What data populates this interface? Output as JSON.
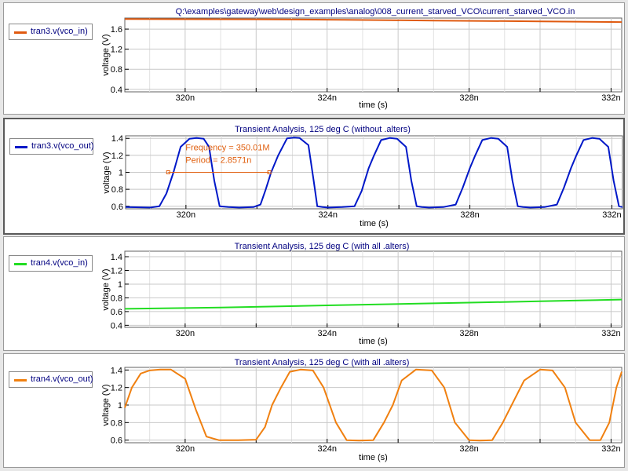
{
  "colors": {
    "plot_title": "#000080",
    "grid": "#c8c8c8",
    "measure": "#e06010",
    "axis_text": "#000000"
  },
  "measurement": {
    "frequency": "Frequency = 350.01M",
    "period": "Period = 2.8571n"
  },
  "chart_data": [
    {
      "type": "line",
      "title": "Q:\\examples\\gateway\\web\\design_examples\\analog\\008_current_starved_VCO\\current_starved_VCO.in",
      "xlabel": "time (s)",
      "ylabel": "voltage (V)",
      "xlim": [
        318.3,
        332.3
      ],
      "ylim": [
        0.35,
        1.82
      ],
      "xticks": [
        320,
        322,
        324,
        326,
        328,
        330,
        332
      ],
      "xtick_labels": [
        "320n",
        "",
        "324n",
        "",
        "328n",
        "",
        "332n"
      ],
      "yticks": [
        0.4,
        0.8,
        1.2,
        1.6
      ],
      "ytick_labels": [
        "0.4",
        "0.8",
        "1.2",
        "1.6"
      ],
      "grid": true,
      "series": [
        {
          "name": "tran3.v(vco_in)",
          "color": "#e05a10",
          "x": [
            318.3,
            322,
            324.5,
            327,
            330,
            332.3
          ],
          "y": [
            1.8,
            1.795,
            1.785,
            1.77,
            1.755,
            1.74
          ]
        }
      ]
    },
    {
      "type": "line",
      "title": "Transient Analysis, 125 deg C (without .alters)",
      "xlabel": "time (s)",
      "ylabel": "voltage (V)",
      "xlim": [
        318.3,
        332.3
      ],
      "ylim": [
        0.57,
        1.43
      ],
      "xticks": [
        320,
        322,
        324,
        326,
        328,
        330,
        332
      ],
      "xtick_labels": [
        "320n",
        "",
        "324n",
        "",
        "328n",
        "",
        "332n"
      ],
      "yticks": [
        0.6,
        0.8,
        1.0,
        1.2,
        1.4
      ],
      "ytick_labels": [
        "0.6",
        "0.8",
        "1",
        "1.2",
        "1.4"
      ],
      "grid": true,
      "series": [
        {
          "name": "tran3.v(vco_out)",
          "color": "#0018c8",
          "x": [
            318.3,
            319.0,
            319.25,
            319.45,
            319.65,
            319.85,
            320.1,
            320.3,
            320.5,
            320.65,
            320.8,
            320.95,
            321.2,
            321.5,
            321.9,
            322.1,
            322.25,
            322.4,
            322.6,
            322.85,
            323.05,
            323.2,
            323.45,
            323.6,
            323.7,
            323.85,
            324.0,
            324.4,
            324.75,
            324.95,
            325.15,
            325.3,
            325.5,
            325.75,
            325.95,
            326.2,
            326.35,
            326.5,
            326.65,
            326.85,
            327.25,
            327.6,
            327.8,
            328.0,
            328.15,
            328.35,
            328.6,
            328.8,
            329.05,
            329.2,
            329.35,
            329.5,
            329.7,
            330.1,
            330.45,
            330.65,
            330.85,
            331.0,
            331.2,
            331.45,
            331.65,
            331.9,
            332.05,
            332.2,
            332.3
          ],
          "y": [
            0.59,
            0.585,
            0.6,
            0.75,
            1.0,
            1.3,
            1.395,
            1.405,
            1.395,
            1.3,
            0.9,
            0.6,
            0.59,
            0.585,
            0.59,
            0.62,
            0.8,
            1.0,
            1.2,
            1.4,
            1.41,
            1.405,
            1.32,
            0.9,
            0.6,
            0.59,
            0.585,
            0.59,
            0.6,
            0.78,
            1.05,
            1.2,
            1.38,
            1.405,
            1.395,
            1.3,
            0.9,
            0.6,
            0.59,
            0.585,
            0.59,
            0.62,
            0.82,
            1.05,
            1.2,
            1.38,
            1.405,
            1.395,
            1.3,
            0.9,
            0.6,
            0.59,
            0.585,
            0.59,
            0.62,
            0.82,
            1.05,
            1.2,
            1.38,
            1.405,
            1.395,
            1.3,
            0.9,
            0.6,
            0.59
          ]
        }
      ],
      "annotations": [
        {
          "type": "period-marker",
          "x_start": 319.5,
          "x_end": 322.35,
          "y": 1.0
        }
      ]
    },
    {
      "type": "line",
      "title": "Transient Analysis, 125 deg C (with all .alters)",
      "xlabel": "time (s)",
      "ylabel": "voltage (V)",
      "xlim": [
        318.3,
        332.3
      ],
      "ylim": [
        0.37,
        1.48
      ],
      "xticks": [
        320,
        322,
        324,
        326,
        328,
        330,
        332
      ],
      "xtick_labels": [
        "320n",
        "",
        "324n",
        "",
        "328n",
        "",
        "332n"
      ],
      "yticks": [
        0.4,
        0.6,
        0.8,
        1.0,
        1.2,
        1.4
      ],
      "ytick_labels": [
        "0.4",
        "0.6",
        "0.8",
        "1",
        "1.2",
        "1.4"
      ],
      "grid": true,
      "series": [
        {
          "name": "tran4.v(vco_in)",
          "color": "#22dd22",
          "x": [
            318.3,
            321,
            324,
            327,
            330,
            332.3
          ],
          "y": [
            0.64,
            0.66,
            0.69,
            0.72,
            0.75,
            0.775
          ]
        }
      ]
    },
    {
      "type": "line",
      "title": "Transient Analysis, 125 deg C (with all .alters)",
      "xlabel": "time (s)",
      "ylabel": "voltage (V)",
      "xlim": [
        318.3,
        332.3
      ],
      "ylim": [
        0.57,
        1.43
      ],
      "xticks": [
        320,
        322,
        324,
        326,
        328,
        330,
        332
      ],
      "xtick_labels": [
        "320n",
        "",
        "324n",
        "",
        "328n",
        "",
        "332n"
      ],
      "yticks": [
        0.6,
        0.8,
        1.0,
        1.2,
        1.4
      ],
      "ytick_labels": [
        "0.6",
        "0.8",
        "1",
        "1.2",
        "1.4"
      ],
      "grid": true,
      "series": [
        {
          "name": "tran4.v(vco_out)",
          "color": "#f08010",
          "x": [
            318.3,
            318.5,
            318.75,
            319.0,
            319.3,
            319.6,
            320.0,
            320.3,
            320.6,
            320.95,
            321.5,
            322.0,
            322.25,
            322.45,
            322.7,
            322.95,
            323.25,
            323.6,
            323.9,
            324.25,
            324.55,
            324.9,
            325.3,
            325.6,
            325.85,
            326.1,
            326.5,
            326.95,
            327.3,
            327.6,
            328.0,
            328.3,
            328.65,
            328.95,
            329.2,
            329.55,
            330.0,
            330.35,
            330.7,
            331.0,
            331.4,
            331.7,
            331.95,
            332.15,
            332.3
          ],
          "y": [
            0.97,
            1.2,
            1.36,
            1.395,
            1.405,
            1.405,
            1.3,
            0.95,
            0.64,
            0.6,
            0.6,
            0.605,
            0.75,
            1.0,
            1.2,
            1.38,
            1.405,
            1.395,
            1.2,
            0.8,
            0.6,
            0.595,
            0.6,
            0.8,
            1.0,
            1.28,
            1.405,
            1.395,
            1.2,
            0.8,
            0.6,
            0.595,
            0.6,
            0.8,
            1.0,
            1.28,
            1.405,
            1.395,
            1.2,
            0.8,
            0.6,
            0.6,
            0.8,
            1.2,
            1.38
          ]
        }
      ]
    }
  ]
}
